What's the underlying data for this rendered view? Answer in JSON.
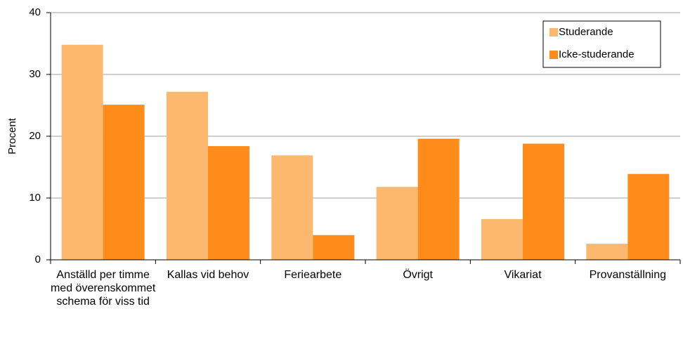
{
  "chart_data": {
    "type": "bar",
    "y_label": "Procent",
    "categories": [
      "Anställd per timme med överenskommet schema för viss tid",
      "Kallas vid behov",
      "Feriearbete",
      "Övrigt",
      "Vikariat",
      "Provanställning"
    ],
    "series": [
      {
        "name": "Studerande",
        "color": "#fdb870",
        "values": [
          34.8,
          27.2,
          16.9,
          11.8,
          6.6,
          2.6
        ]
      },
      {
        "name": "Icke-studerande",
        "color": "#ff8c1a",
        "values": [
          25.1,
          18.4,
          4.0,
          19.6,
          18.8,
          13.9
        ]
      }
    ],
    "ylim": [
      0,
      40
    ],
    "yticks": [
      0,
      10,
      20,
      30,
      40
    ],
    "grid": true,
    "legend": "top-right"
  }
}
